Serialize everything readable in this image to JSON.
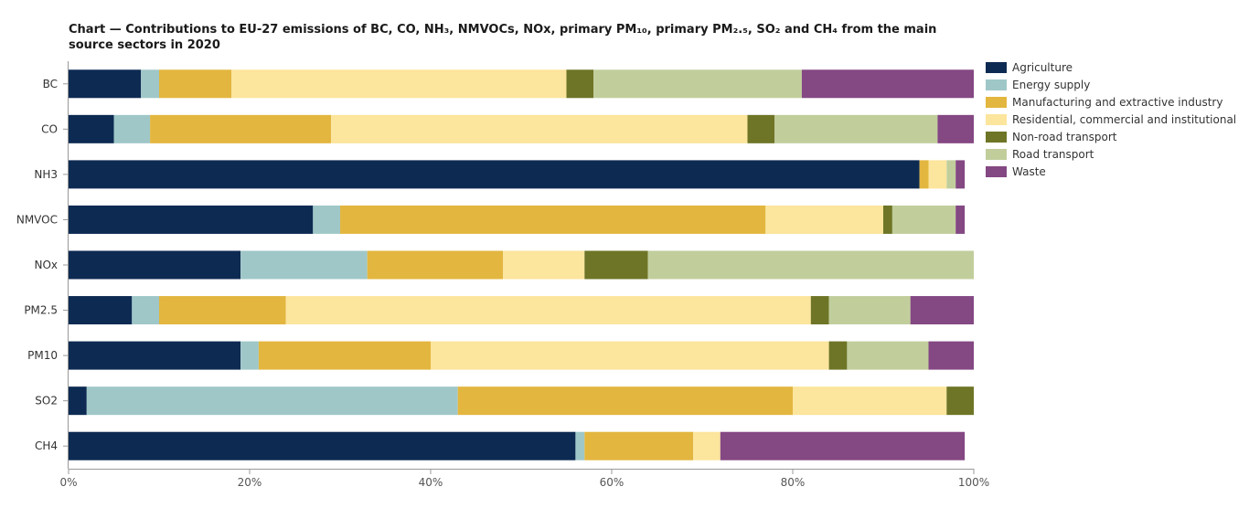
{
  "title": "Chart — Contributions to EU-27 emissions of BC, CO, NH₃, NMVOCs, NOx, primary PM₁₀, primary PM₂.₅, SO₂ and CH₄ from the main source sectors in 2020",
  "colors": {
    "Agriculture": "#0d2a52",
    "Energy supply": "#9fc7c8",
    "Manufacturing and extractive industry": "#e3b63f",
    "Residential, commercial and institutional": "#fce59c",
    "Non-road transport": "#6e7526",
    "Road transport": "#c1ce9c",
    "Waste": "#844883"
  },
  "chart_data": {
    "type": "bar",
    "orientation": "horizontal",
    "stacked": true,
    "categories": [
      "BC",
      "CO",
      "NH3",
      "NMVOC",
      "NOx",
      "PM2.5",
      "PM10",
      "SO2",
      "CH4"
    ],
    "series": [
      {
        "name": "Agriculture",
        "values": [
          8,
          5,
          94,
          27,
          19,
          7,
          19,
          2,
          56
        ]
      },
      {
        "name": "Energy supply",
        "values": [
          2,
          4,
          0,
          3,
          14,
          3,
          2,
          41,
          1
        ]
      },
      {
        "name": "Manufacturing and extractive industry",
        "values": [
          8,
          20,
          1,
          47,
          15,
          14,
          19,
          37,
          12
        ]
      },
      {
        "name": "Residential, commercial and institutional",
        "values": [
          37,
          46,
          2,
          13,
          9,
          58,
          44,
          17,
          3
        ]
      },
      {
        "name": "Non-road transport",
        "values": [
          3,
          3,
          0,
          1,
          7,
          2,
          2,
          3,
          0
        ]
      },
      {
        "name": "Road transport",
        "values": [
          23,
          18,
          1,
          7,
          36,
          9,
          9,
          0,
          0
        ]
      },
      {
        "name": "Waste",
        "values": [
          19,
          4,
          1,
          1,
          0,
          7,
          5,
          0,
          27
        ]
      }
    ],
    "x_ticks": [
      "0%",
      "20%",
      "40%",
      "60%",
      "80%",
      "100%"
    ],
    "xlim": [
      0,
      100
    ],
    "xlabel": "",
    "ylabel": "",
    "grid": false,
    "legend_position": "right"
  }
}
